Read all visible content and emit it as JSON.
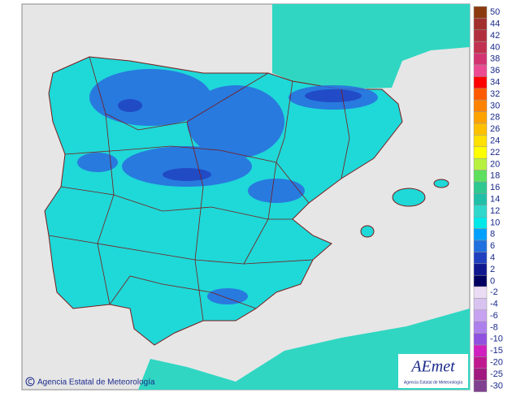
{
  "credit": "Agencia Estatal de Meteorología",
  "logo": {
    "name": "AEmet",
    "subtitle": "Agencia Estatal de Meteorología"
  },
  "legend": {
    "warm": [
      {
        "label": 50,
        "color": "#8b3a0f"
      },
      {
        "label": 44,
        "color": "#a2302c"
      },
      {
        "label": 42,
        "color": "#b2303e"
      },
      {
        "label": 40,
        "color": "#c23050"
      },
      {
        "label": 38,
        "color": "#d43372"
      },
      {
        "label": 36,
        "color": "#ec4a92"
      },
      {
        "label": 34,
        "color": "#ff0000"
      },
      {
        "label": 32,
        "color": "#ff5a00"
      },
      {
        "label": 30,
        "color": "#ff8200"
      },
      {
        "label": 28,
        "color": "#ffa200"
      },
      {
        "label": 26,
        "color": "#ffc000"
      },
      {
        "label": 24,
        "color": "#ffe000"
      },
      {
        "label": 22,
        "color": "#ffff00"
      },
      {
        "label": 20,
        "color": "#b8f040"
      },
      {
        "label": 18,
        "color": "#5ee05e"
      },
      {
        "label": 16,
        "color": "#2ec890"
      },
      {
        "label": 14,
        "color": "#20c0a8"
      },
      {
        "label": 12,
        "color": "#30d8cc"
      },
      {
        "label": 10,
        "color": "#00e8e8"
      },
      {
        "label": 8,
        "color": "#00a0ff"
      },
      {
        "label": 6,
        "color": "#2070e0"
      },
      {
        "label": 4,
        "color": "#2040c0"
      },
      {
        "label": 2,
        "color": "#101890"
      },
      {
        "label": 0,
        "color": "#000060"
      }
    ],
    "cold": [
      {
        "label": -2,
        "color": "#eadcf2"
      },
      {
        "label": -4,
        "color": "#d8c2f0"
      },
      {
        "label": -6,
        "color": "#c6a2f0"
      },
      {
        "label": -8,
        "color": "#ae80ee"
      },
      {
        "label": -10,
        "color": "#9050e0"
      },
      {
        "label": -15,
        "color": "#d020c0"
      },
      {
        "label": -20,
        "color": "#c01890"
      },
      {
        "label": -25,
        "color": "#a01880"
      },
      {
        "label": -30,
        "color": "#804090"
      }
    ]
  }
}
